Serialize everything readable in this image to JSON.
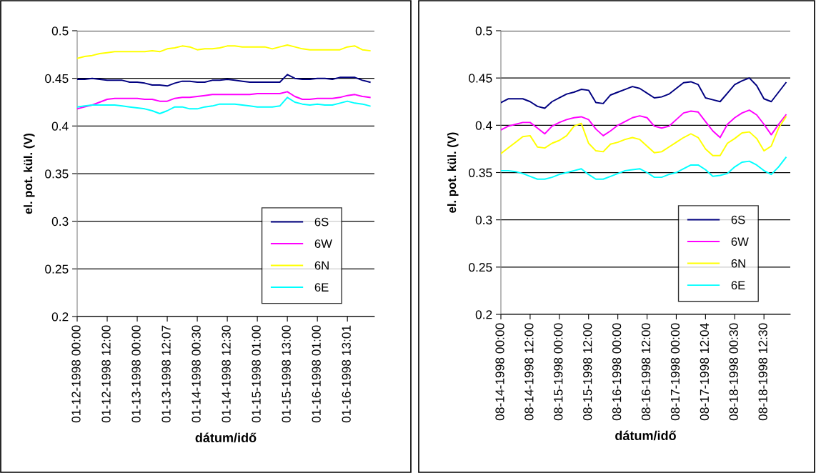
{
  "chart_data": [
    {
      "type": "line",
      "xlabel": "dátum/idő",
      "ylabel": "el. pot. kül. (V)",
      "categories": [
        "01-12-1998 00:00",
        null,
        null,
        null,
        "01-12-1998 12:00",
        null,
        null,
        null,
        "01-13-1998 00:00",
        null,
        null,
        null,
        "01-13-1998 12:07",
        null,
        null,
        null,
        "01-14-1998 00:30",
        null,
        null,
        null,
        "01-14-1998 12:30",
        null,
        null,
        null,
        "01-15-1998 01:00",
        null,
        null,
        null,
        "01-15-1998 13:00",
        null,
        null,
        null,
        "01-16-1998 01:00",
        null,
        null,
        null,
        "01-16-1998 13:01",
        null,
        null,
        null
      ],
      "series": [
        {
          "name": "6S",
          "color": "#000080",
          "values": [
            0.449,
            0.449,
            0.45,
            0.449,
            0.448,
            0.448,
            0.448,
            0.446,
            0.446,
            0.445,
            0.443,
            0.443,
            0.442,
            0.445,
            0.447,
            0.447,
            0.446,
            0.446,
            0.448,
            0.448,
            0.449,
            0.448,
            0.447,
            0.446,
            0.446,
            0.446,
            0.446,
            0.446,
            0.454,
            0.45,
            0.449,
            0.449,
            0.45,
            0.45,
            0.449,
            0.451,
            0.451,
            0.451,
            0.448,
            0.446
          ]
        },
        {
          "name": "6W",
          "color": "#ff00ff",
          "values": [
            0.418,
            0.42,
            0.422,
            0.425,
            0.428,
            0.429,
            0.429,
            0.429,
            0.429,
            0.428,
            0.428,
            0.426,
            0.426,
            0.429,
            0.43,
            0.43,
            0.431,
            0.432,
            0.433,
            0.433,
            0.433,
            0.433,
            0.433,
            0.433,
            0.434,
            0.434,
            0.434,
            0.434,
            0.436,
            0.431,
            0.428,
            0.428,
            0.429,
            0.429,
            0.429,
            0.43,
            0.432,
            0.433,
            0.431,
            0.43
          ]
        },
        {
          "name": "6N",
          "color": "#ffff00",
          "values": [
            0.471,
            0.473,
            0.474,
            0.476,
            0.477,
            0.478,
            0.478,
            0.478,
            0.478,
            0.478,
            0.479,
            0.478,
            0.481,
            0.482,
            0.484,
            0.483,
            0.48,
            0.481,
            0.481,
            0.482,
            0.484,
            0.484,
            0.483,
            0.483,
            0.483,
            0.483,
            0.481,
            0.483,
            0.485,
            0.483,
            0.481,
            0.48,
            0.48,
            0.48,
            0.48,
            0.48,
            0.483,
            0.484,
            0.48,
            0.479
          ]
        },
        {
          "name": "6E",
          "color": "#00ffff",
          "values": [
            0.42,
            0.421,
            0.422,
            0.422,
            0.422,
            0.422,
            0.421,
            0.42,
            0.419,
            0.418,
            0.416,
            0.413,
            0.416,
            0.42,
            0.42,
            0.418,
            0.418,
            0.42,
            0.421,
            0.423,
            0.423,
            0.423,
            0.422,
            0.421,
            0.42,
            0.42,
            0.42,
            0.421,
            0.43,
            0.425,
            0.423,
            0.422,
            0.423,
            0.422,
            0.422,
            0.424,
            0.426,
            0.424,
            0.423,
            0.421
          ]
        }
      ],
      "ylim": [
        0.2,
        0.5
      ],
      "yticks": [
        0.2,
        0.25,
        0.3,
        0.35,
        0.4,
        0.45,
        0.5
      ],
      "grid": "y",
      "legend": "bottom right",
      "marker": "none",
      "line_style": "solid"
    },
    {
      "type": "line",
      "xlabel": "dátum/idő",
      "ylabel": "el. pot. kül. (V)",
      "categories": [
        "08-14-1998 00:00",
        null,
        null,
        null,
        "08-14-1998 12:00",
        null,
        null,
        null,
        "08-15-1998 00:00",
        null,
        null,
        null,
        "08-15-1998 12:00",
        null,
        null,
        null,
        "08-16-1998 00:00",
        null,
        null,
        null,
        "08-16-1998 12:00",
        null,
        null,
        null,
        "08-17-1998 00:00",
        null,
        null,
        null,
        "08-17-1998 12:04",
        null,
        null,
        null,
        "08-18-1998 00:30",
        null,
        null,
        null,
        "08-18-1998 12:30",
        null,
        null,
        null
      ],
      "series": [
        {
          "name": "6S",
          "color": "#000080",
          "values": [
            0.424,
            0.428,
            0.428,
            0.428,
            0.425,
            0.42,
            0.418,
            0.425,
            0.429,
            0.433,
            0.435,
            0.438,
            0.437,
            0.424,
            0.423,
            0.432,
            0.435,
            0.438,
            0.441,
            0.439,
            0.434,
            0.429,
            0.43,
            0.433,
            0.439,
            0.445,
            0.446,
            0.443,
            0.429,
            0.427,
            0.425,
            0.434,
            0.443,
            0.447,
            0.45,
            0.442,
            0.428,
            0.425,
            0.435,
            0.445
          ]
        },
        {
          "name": "6W",
          "color": "#ff00ff",
          "values": [
            0.395,
            0.399,
            0.401,
            0.403,
            0.403,
            0.397,
            0.391,
            0.399,
            0.403,
            0.406,
            0.408,
            0.409,
            0.406,
            0.396,
            0.389,
            0.394,
            0.4,
            0.404,
            0.408,
            0.41,
            0.408,
            0.399,
            0.397,
            0.399,
            0.406,
            0.413,
            0.415,
            0.414,
            0.404,
            0.394,
            0.387,
            0.401,
            0.408,
            0.413,
            0.416,
            0.411,
            0.401,
            0.39,
            0.401,
            0.411
          ]
        },
        {
          "name": "6N",
          "color": "#ffff00",
          "values": [
            0.37,
            0.376,
            0.382,
            0.388,
            0.389,
            0.377,
            0.376,
            0.381,
            0.384,
            0.389,
            0.399,
            0.402,
            0.381,
            0.373,
            0.372,
            0.38,
            0.382,
            0.385,
            0.387,
            0.385,
            0.378,
            0.371,
            0.372,
            0.377,
            0.382,
            0.387,
            0.391,
            0.387,
            0.375,
            0.368,
            0.368,
            0.381,
            0.386,
            0.392,
            0.393,
            0.386,
            0.373,
            0.378,
            0.397,
            0.409
          ]
        },
        {
          "name": "6E",
          "color": "#00ffff",
          "values": [
            0.352,
            0.352,
            0.351,
            0.349,
            0.346,
            0.343,
            0.343,
            0.345,
            0.348,
            0.35,
            0.352,
            0.354,
            0.348,
            0.343,
            0.343,
            0.346,
            0.349,
            0.352,
            0.353,
            0.354,
            0.35,
            0.345,
            0.345,
            0.348,
            0.35,
            0.354,
            0.358,
            0.358,
            0.353,
            0.346,
            0.347,
            0.349,
            0.356,
            0.361,
            0.362,
            0.358,
            0.352,
            0.348,
            0.356,
            0.366
          ]
        }
      ],
      "ylim": [
        0.2,
        0.5
      ],
      "yticks": [
        0.2,
        0.25,
        0.3,
        0.35,
        0.4,
        0.45,
        0.5
      ],
      "grid": "y",
      "legend": "bottom right",
      "marker": "none",
      "line_style": "solid"
    }
  ]
}
